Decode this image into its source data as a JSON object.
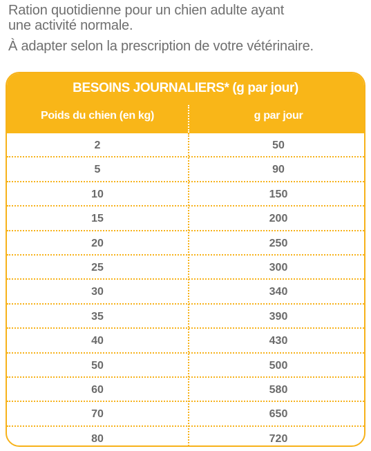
{
  "intro": {
    "line1": "Ration quotidienne pour un chien adulte ayant",
    "line2": "une activité normale.",
    "line3": "À adapter selon la prescription de votre vétérinaire."
  },
  "table": {
    "title": "BESOINS JOURNALIERS* (g par jour)",
    "columns": [
      "Poids du chien (en kg)",
      "g par jour"
    ],
    "rows": [
      [
        "2",
        "50"
      ],
      [
        "5",
        "90"
      ],
      [
        "10",
        "150"
      ],
      [
        "15",
        "200"
      ],
      [
        "20",
        "250"
      ],
      [
        "25",
        "300"
      ],
      [
        "30",
        "340"
      ],
      [
        "35",
        "390"
      ],
      [
        "40",
        "430"
      ],
      [
        "50",
        "500"
      ],
      [
        "60",
        "580"
      ],
      [
        "70",
        "650"
      ],
      [
        "80",
        "720"
      ]
    ]
  },
  "colors": {
    "accent": "#f9b618",
    "text": "#6e6e6e"
  }
}
